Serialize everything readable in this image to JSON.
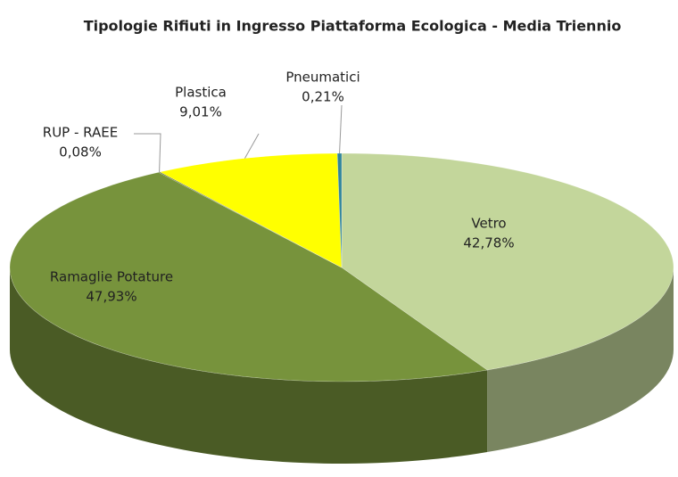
{
  "chart_data": {
    "type": "pie3d",
    "title": "Tipologie Rifiuti in Ingresso Piattaforma Ecologica - Media Triennio",
    "categories": [
      "Vetro",
      "Ramaglie Potature",
      "RUP - RAEE",
      "Plastica",
      "Pneumatici"
    ],
    "values": [
      42.78,
      47.93,
      0.08,
      9.01,
      0.21
    ],
    "value_labels": [
      "42,78%",
      "47,93%",
      "0,08%",
      "9,01%",
      "0,21%"
    ],
    "colors": [
      "#c3d69b",
      "#77933c",
      "#4f6228",
      "#ffff00",
      "#31859c"
    ]
  }
}
